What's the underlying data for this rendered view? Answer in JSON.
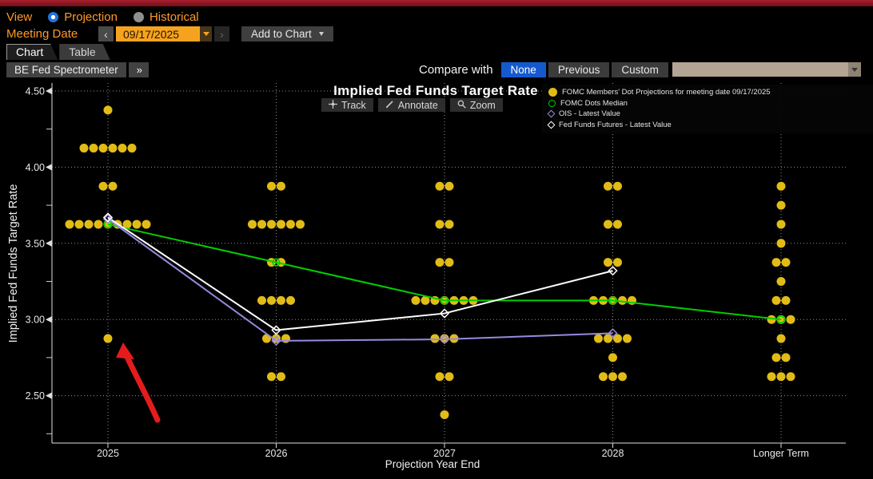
{
  "toolbar": {
    "view_label": "View",
    "view_options": [
      {
        "label": "Projection",
        "selected": true
      },
      {
        "label": "Historical",
        "selected": false
      }
    ],
    "meeting_date_label": "Meeting Date",
    "prev_arrow": "‹",
    "next_arrow": "›",
    "meeting_date_value": "09/17/2025",
    "add_to_chart_label": "Add to Chart",
    "tabs": [
      {
        "label": "Chart",
        "active": true
      },
      {
        "label": "Table",
        "active": false
      }
    ],
    "spectrometer_label": "BE Fed Spectrometer",
    "expand_chevrons": "»",
    "compare_label": "Compare with",
    "compare_options": [
      {
        "label": "None",
        "selected": true
      },
      {
        "label": "Previous",
        "selected": false
      },
      {
        "label": "Custom",
        "selected": false
      }
    ]
  },
  "chart": {
    "title": "Implied Fed Funds Target Rate",
    "ylabel": "Implied Fed Funds Target Rate",
    "xlabel": "Projection Year End",
    "tools": [
      {
        "label": "Track",
        "icon": "track-crosshair-icon"
      },
      {
        "label": "Annotate",
        "icon": "annotate-pencil-icon"
      },
      {
        "label": "Zoom",
        "icon": "zoom-magnifier-icon"
      }
    ],
    "legend": [
      {
        "label": "FOMC Members' Dot Projections for meeting date 09/17/2025",
        "marker": "filled-circle",
        "color": "#e2bc16"
      },
      {
        "label": "FOMC Dots Median",
        "marker": "open-circle",
        "color": "#00cf00"
      },
      {
        "label": "OIS - Latest Value",
        "marker": "open-diamond",
        "color": "#978adf"
      },
      {
        "label": "Fed Funds Futures - Latest Value",
        "marker": "open-diamond",
        "color": "#ffffff"
      }
    ]
  },
  "chart_data": {
    "type": "scatter",
    "title": "Implied Fed Funds Target Rate",
    "xlabel": "Projection Year End",
    "ylabel": "Implied Fed Funds Target Rate",
    "categories": [
      "2025",
      "2026",
      "2027",
      "2028",
      "Longer Term"
    ],
    "y_ticks": [
      4.5,
      4.0,
      3.5,
      3.0,
      2.5
    ],
    "ylim": [
      2.19,
      4.55
    ],
    "grid": "dotted",
    "legend_position": "top-right",
    "dot_color": "#e2bc16",
    "dots": [
      {
        "category": "2025",
        "rate": 4.375,
        "count": 1
      },
      {
        "category": "2025",
        "rate": 4.125,
        "count": 6
      },
      {
        "category": "2025",
        "rate": 3.875,
        "count": 2
      },
      {
        "category": "2025",
        "rate": 3.625,
        "count": 9
      },
      {
        "category": "2025",
        "rate": 2.875,
        "count": 1
      },
      {
        "category": "2026",
        "rate": 3.875,
        "count": 2
      },
      {
        "category": "2026",
        "rate": 3.625,
        "count": 6
      },
      {
        "category": "2026",
        "rate": 3.375,
        "count": 2
      },
      {
        "category": "2026",
        "rate": 3.125,
        "count": 4
      },
      {
        "category": "2026",
        "rate": 2.875,
        "count": 3
      },
      {
        "category": "2026",
        "rate": 2.625,
        "count": 2
      },
      {
        "category": "2027",
        "rate": 3.875,
        "count": 2
      },
      {
        "category": "2027",
        "rate": 3.625,
        "count": 2
      },
      {
        "category": "2027",
        "rate": 3.375,
        "count": 2
      },
      {
        "category": "2027",
        "rate": 3.125,
        "count": 7
      },
      {
        "category": "2027",
        "rate": 2.875,
        "count": 3
      },
      {
        "category": "2027",
        "rate": 2.625,
        "count": 2
      },
      {
        "category": "2027",
        "rate": 2.375,
        "count": 1
      },
      {
        "category": "2028",
        "rate": 3.875,
        "count": 2
      },
      {
        "category": "2028",
        "rate": 3.625,
        "count": 2
      },
      {
        "category": "2028",
        "rate": 3.375,
        "count": 2
      },
      {
        "category": "2028",
        "rate": 3.125,
        "count": 5
      },
      {
        "category": "2028",
        "rate": 2.875,
        "count": 4
      },
      {
        "category": "2028",
        "rate": 2.75,
        "count": 1
      },
      {
        "category": "2028",
        "rate": 2.625,
        "count": 3
      },
      {
        "category": "Longer Term",
        "rate": 3.875,
        "count": 1
      },
      {
        "category": "Longer Term",
        "rate": 3.75,
        "count": 1
      },
      {
        "category": "Longer Term",
        "rate": 3.625,
        "count": 1
      },
      {
        "category": "Longer Term",
        "rate": 3.5,
        "count": 1
      },
      {
        "category": "Longer Term",
        "rate": 3.375,
        "count": 2
      },
      {
        "category": "Longer Term",
        "rate": 3.25,
        "count": 1
      },
      {
        "category": "Longer Term",
        "rate": 3.125,
        "count": 2
      },
      {
        "category": "Longer Term",
        "rate": 3.0,
        "count": 3
      },
      {
        "category": "Longer Term",
        "rate": 2.875,
        "count": 1
      },
      {
        "category": "Longer Term",
        "rate": 2.75,
        "count": 2
      },
      {
        "category": "Longer Term",
        "rate": 2.625,
        "count": 3
      }
    ],
    "series": [
      {
        "name": "FOMC Dots Median",
        "type": "line",
        "color": "#00cf00",
        "marker": "open-circle",
        "x": [
          "2025",
          "2026",
          "2027",
          "2028",
          "Longer Term"
        ],
        "values": [
          3.625,
          3.375,
          3.125,
          3.125,
          3.0
        ]
      },
      {
        "name": "OIS - Latest Value",
        "type": "line",
        "color": "#978adf",
        "marker": "open-diamond",
        "x": [
          "2025",
          "2026",
          "2027",
          "2028"
        ],
        "values": [
          3.66,
          2.86,
          2.87,
          2.91
        ]
      },
      {
        "name": "Fed Funds Futures - Latest Value",
        "type": "line",
        "color": "#ffffff",
        "marker": "open-diamond",
        "x": [
          "2025",
          "2026",
          "2027",
          "2028"
        ],
        "values": [
          3.67,
          2.93,
          3.04,
          3.32
        ]
      }
    ],
    "annotation": {
      "shape": "hand-drawn-arrow",
      "color": "#e41c1c",
      "points_to": {
        "category": "2025",
        "rate": 2.875
      }
    }
  }
}
